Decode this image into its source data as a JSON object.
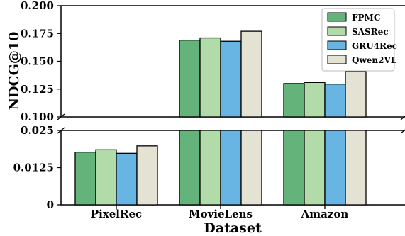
{
  "chart_data": {
    "type": "bar",
    "xlabel": "Dataset",
    "ylabel": "NDCG@10",
    "categories": [
      "PixelRec",
      "MovieLens",
      "Amazon"
    ],
    "series": [
      {
        "name": "FPMC",
        "color": "#63b37b",
        "values": [
          0.0177,
          0.169,
          0.13
        ]
      },
      {
        "name": "SASRec",
        "color": "#b1dcaa",
        "values": [
          0.0185,
          0.171,
          0.131
        ]
      },
      {
        "name": "GRU4Rec",
        "color": "#68b4e2",
        "values": [
          0.0173,
          0.168,
          0.1295
        ]
      },
      {
        "name": "Qwen2VL",
        "color": "#e4e2d3",
        "values": [
          0.0198,
          0.177,
          0.141
        ]
      }
    ],
    "axis_break": true,
    "upper_ylim": [
      0.1,
      0.2
    ],
    "lower_ylim": [
      0,
      0.025
    ],
    "yticks_upper": [
      "0.100",
      "0.125",
      "0.150",
      "0.175",
      "0.200"
    ],
    "yticks_lower": [
      "0",
      "0.0125",
      "0.025"
    ],
    "legend_position": "top-right",
    "grid": false
  }
}
